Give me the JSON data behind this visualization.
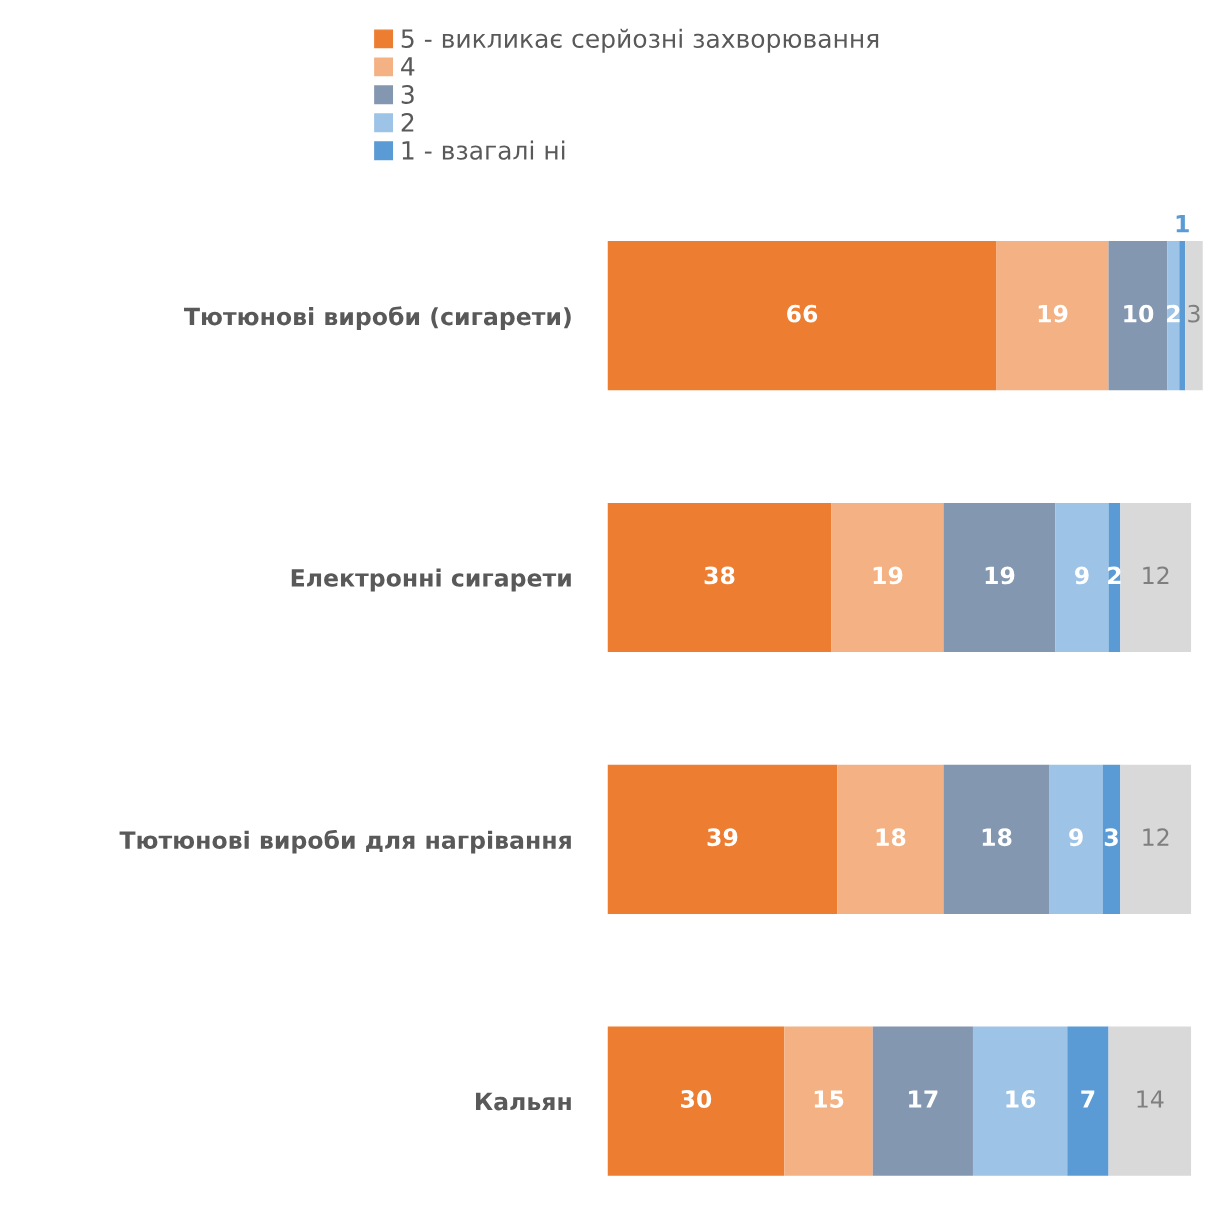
{
  "chart_data": {
    "type": "bar",
    "orientation": "horizontal",
    "stacked": true,
    "data_labels": true,
    "legend": "top",
    "grid": false,
    "categories": [
      "Тютюнові вироби (сигарети)",
      "Електронні сигарети",
      "Тютюнові вироби для нагрівання",
      "Кальян"
    ],
    "series": [
      {
        "name": "5 - викликає серйозні захворювання",
        "color": "#ed7d31",
        "values": [
          66,
          38,
          39,
          30
        ]
      },
      {
        "name": "4",
        "color": "#f4b183",
        "values": [
          19,
          19,
          18,
          15
        ]
      },
      {
        "name": "3",
        "color": "#8497b0",
        "values": [
          10,
          19,
          18,
          17
        ]
      },
      {
        "name": "2",
        "color": "#9dc3e6",
        "values": [
          2,
          9,
          9,
          16
        ]
      },
      {
        "name": "1 - взагалі ні",
        "color": "#5b9bd5",
        "values": [
          1,
          2,
          3,
          7
        ]
      },
      {
        "color": "#d9d9d9",
        "values": [
          3,
          12,
          12,
          14
        ]
      }
    ]
  }
}
